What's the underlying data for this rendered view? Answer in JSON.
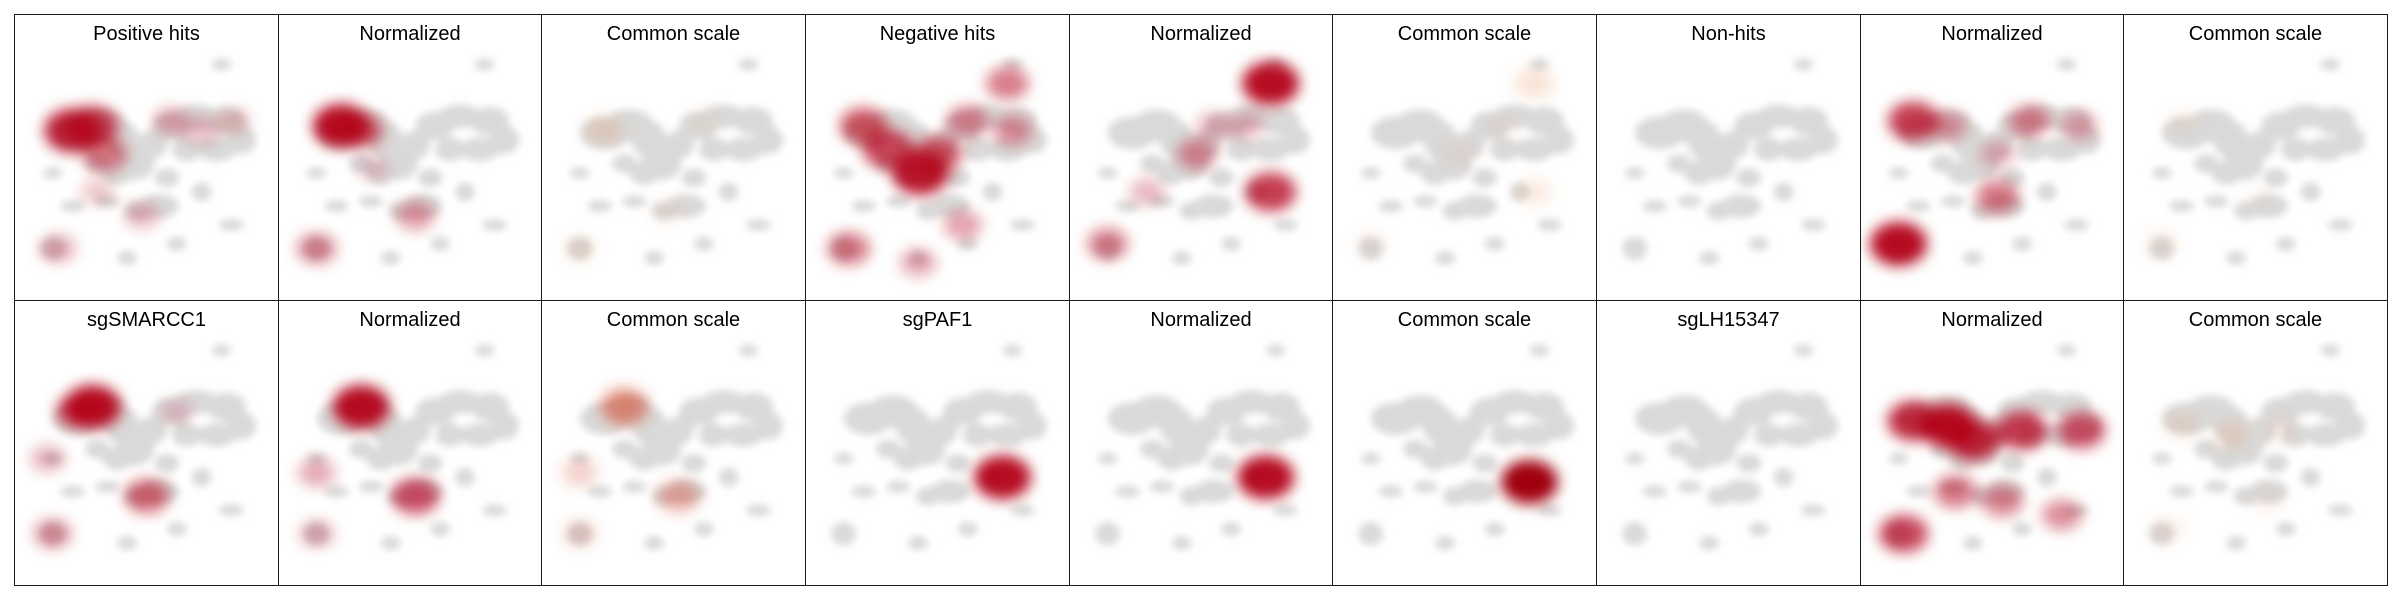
{
  "figure": {
    "panels": [
      {
        "title": "Positive hits",
        "hotspots": [
          [
            0.2,
            0.32,
            1.0
          ],
          [
            0.28,
            0.3,
            0.85
          ],
          [
            0.33,
            0.42,
            0.6
          ],
          [
            0.6,
            0.28,
            0.35
          ],
          [
            0.72,
            0.32,
            0.3
          ],
          [
            0.85,
            0.28,
            0.25
          ],
          [
            0.14,
            0.82,
            0.35
          ],
          [
            0.48,
            0.68,
            0.3
          ],
          [
            0.3,
            0.58,
            0.25
          ]
        ],
        "colorScale": "#b30018",
        "maxOpacity": 0.85
      },
      {
        "title": "Normalized",
        "hotspots": [
          [
            0.22,
            0.3,
            1.0
          ],
          [
            0.3,
            0.32,
            0.6
          ],
          [
            0.52,
            0.68,
            0.4
          ],
          [
            0.12,
            0.82,
            0.45
          ],
          [
            0.35,
            0.48,
            0.2
          ]
        ],
        "colorScale": "#b30018",
        "maxOpacity": 0.95
      },
      {
        "title": "Common scale",
        "hotspots": [
          [
            0.22,
            0.32,
            0.4
          ],
          [
            0.48,
            0.66,
            0.2
          ],
          [
            0.12,
            0.82,
            0.25
          ],
          [
            0.62,
            0.28,
            0.15
          ]
        ],
        "colorScale": "#e07830",
        "maxOpacity": 0.5
      },
      {
        "title": "Negative hits",
        "hotspots": [
          [
            0.2,
            0.3,
            0.7
          ],
          [
            0.3,
            0.4,
            0.8
          ],
          [
            0.43,
            0.5,
            1.0
          ],
          [
            0.5,
            0.42,
            0.7
          ],
          [
            0.62,
            0.28,
            0.5
          ],
          [
            0.8,
            0.32,
            0.45
          ],
          [
            0.14,
            0.82,
            0.55
          ],
          [
            0.6,
            0.72,
            0.4
          ],
          [
            0.42,
            0.88,
            0.35
          ],
          [
            0.78,
            0.12,
            0.55
          ]
        ],
        "colorScale": "#b30018",
        "maxOpacity": 0.9
      },
      {
        "title": "Normalized",
        "hotspots": [
          [
            0.78,
            0.12,
            1.0
          ],
          [
            0.78,
            0.58,
            0.8
          ],
          [
            0.48,
            0.42,
            0.45
          ],
          [
            0.55,
            0.3,
            0.3
          ],
          [
            0.12,
            0.8,
            0.5
          ],
          [
            0.28,
            0.58,
            0.3
          ],
          [
            0.68,
            0.3,
            0.3
          ]
        ],
        "colorScale": "#b30018",
        "maxOpacity": 0.95
      },
      {
        "title": "Common scale",
        "hotspots": [
          [
            0.78,
            0.12,
            0.45
          ],
          [
            0.78,
            0.58,
            0.3
          ],
          [
            0.48,
            0.42,
            0.2
          ],
          [
            0.12,
            0.8,
            0.2
          ],
          [
            0.65,
            0.3,
            0.2
          ]
        ],
        "colorScale": "#e07830",
        "maxOpacity": 0.45
      },
      {
        "title": "Non-hits",
        "hotspots": [],
        "colorScale": "#b30018",
        "maxOpacity": 0.3
      },
      {
        "title": "Normalized",
        "hotspots": [
          [
            0.12,
            0.8,
            1.0
          ],
          [
            0.18,
            0.28,
            0.8
          ],
          [
            0.52,
            0.6,
            0.55
          ],
          [
            0.65,
            0.28,
            0.5
          ],
          [
            0.32,
            0.3,
            0.4
          ],
          [
            0.52,
            0.42,
            0.3
          ],
          [
            0.85,
            0.3,
            0.35
          ]
        ],
        "colorScale": "#b30018",
        "maxOpacity": 0.95
      },
      {
        "title": "Common scale",
        "hotspots": [
          [
            0.12,
            0.8,
            0.3
          ],
          [
            0.2,
            0.28,
            0.2
          ],
          [
            0.52,
            0.6,
            0.15
          ]
        ],
        "colorScale": "#e07830",
        "maxOpacity": 0.35
      },
      {
        "title": "sgSMARCC1",
        "hotspots": [
          [
            0.28,
            0.28,
            1.0
          ],
          [
            0.22,
            0.3,
            0.6
          ],
          [
            0.5,
            0.66,
            0.6
          ],
          [
            0.12,
            0.82,
            0.4
          ],
          [
            0.1,
            0.5,
            0.3
          ],
          [
            0.62,
            0.3,
            0.2
          ]
        ],
        "colorScale": "#b30018",
        "maxOpacity": 0.95
      },
      {
        "title": "Normalized",
        "hotspots": [
          [
            0.3,
            0.28,
            1.0
          ],
          [
            0.52,
            0.66,
            0.7
          ],
          [
            0.12,
            0.56,
            0.35
          ],
          [
            0.12,
            0.82,
            0.3
          ]
        ],
        "colorScale": "#b30018",
        "maxOpacity": 0.95
      },
      {
        "title": "Common scale",
        "hotspots": [
          [
            0.3,
            0.28,
            0.7
          ],
          [
            0.52,
            0.66,
            0.5
          ],
          [
            0.12,
            0.56,
            0.3
          ],
          [
            0.12,
            0.82,
            0.25
          ]
        ],
        "colorScale": "#d04020",
        "maxOpacity": 0.8
      },
      {
        "title": "sgPAF1",
        "hotspots": [
          [
            0.76,
            0.58,
            1.0
          ]
        ],
        "colorScale": "#b30018",
        "maxOpacity": 0.95
      },
      {
        "title": "Normalized",
        "hotspots": [
          [
            0.76,
            0.58,
            1.0
          ]
        ],
        "colorScale": "#b30018",
        "maxOpacity": 0.95
      },
      {
        "title": "Common scale",
        "hotspots": [
          [
            0.76,
            0.6,
            1.0
          ]
        ],
        "colorScale": "#a00010",
        "maxOpacity": 1.0
      },
      {
        "title": "sgLH15347",
        "hotspots": [],
        "colorScale": "#b30018",
        "maxOpacity": 0.3
      },
      {
        "title": "Normalized",
        "hotspots": [
          [
            0.18,
            0.34,
            0.85
          ],
          [
            0.32,
            0.36,
            1.0
          ],
          [
            0.42,
            0.42,
            0.9
          ],
          [
            0.62,
            0.38,
            0.8
          ],
          [
            0.86,
            0.38,
            0.7
          ],
          [
            0.14,
            0.82,
            0.75
          ],
          [
            0.35,
            0.64,
            0.55
          ],
          [
            0.54,
            0.68,
            0.5
          ],
          [
            0.78,
            0.74,
            0.45
          ]
        ],
        "colorScale": "#b30018",
        "maxOpacity": 0.95
      },
      {
        "title": "Common scale",
        "hotspots": [
          [
            0.2,
            0.36,
            0.3
          ],
          [
            0.4,
            0.4,
            0.35
          ],
          [
            0.6,
            0.38,
            0.25
          ],
          [
            0.14,
            0.8,
            0.25
          ],
          [
            0.55,
            0.68,
            0.2
          ]
        ],
        "colorScale": "#e07830",
        "maxOpacity": 0.45
      }
    ],
    "colors": {
      "umap_gray": "#d9d9d9",
      "frame": "#1a1a1a",
      "title_text": "#000000"
    }
  }
}
